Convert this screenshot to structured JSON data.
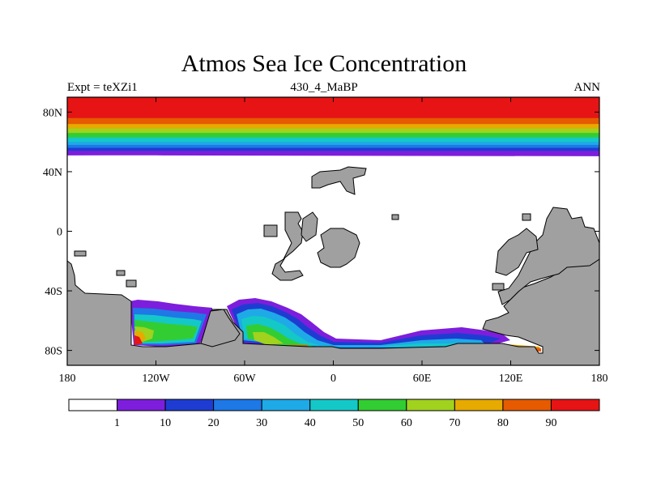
{
  "chart_data": {
    "type": "heatmap",
    "title": "Atmos Sea Ice Concentration",
    "subtitle_left": "Expt = teXZi1",
    "subtitle_center": "430_4_MaBP",
    "subtitle_right": "ANN",
    "x_ticks": [
      "180",
      "120W",
      "60W",
      "0",
      "60E",
      "120E",
      "180"
    ],
    "x_tick_values": [
      -180,
      -120,
      -60,
      0,
      60,
      120,
      180
    ],
    "y_ticks": [
      "80N",
      "40N",
      "0",
      "40S",
      "80S"
    ],
    "y_tick_values": [
      80,
      40,
      0,
      -40,
      -80
    ],
    "xlim": [
      -180,
      180
    ],
    "ylim": [
      -90,
      90
    ],
    "colorbar_labels": [
      "1",
      "10",
      "20",
      "30",
      "40",
      "50",
      "60",
      "70",
      "80",
      "90"
    ],
    "colorbar_colors": [
      "#ffffff",
      "#7d1edc",
      "#1e3cd2",
      "#1e78e6",
      "#1eaae6",
      "#14c8c8",
      "#32cd32",
      "#a0d21e",
      "#e6aa00",
      "#e65a00",
      "#e61414"
    ],
    "land_color": "#a0a0a0",
    "north_ice_bands": [
      {
        "lat": 90,
        "value": 95
      },
      {
        "lat": 76,
        "value": 85
      },
      {
        "lat": 72,
        "value": 75
      },
      {
        "lat": 69,
        "value": 65
      },
      {
        "lat": 66,
        "value": 55
      },
      {
        "lat": 63,
        "value": 45
      },
      {
        "lat": 60,
        "value": 35
      },
      {
        "lat": 58,
        "value": 25
      },
      {
        "lat": 56,
        "value": 15
      },
      {
        "lat": 54,
        "value": 5
      }
    ]
  }
}
